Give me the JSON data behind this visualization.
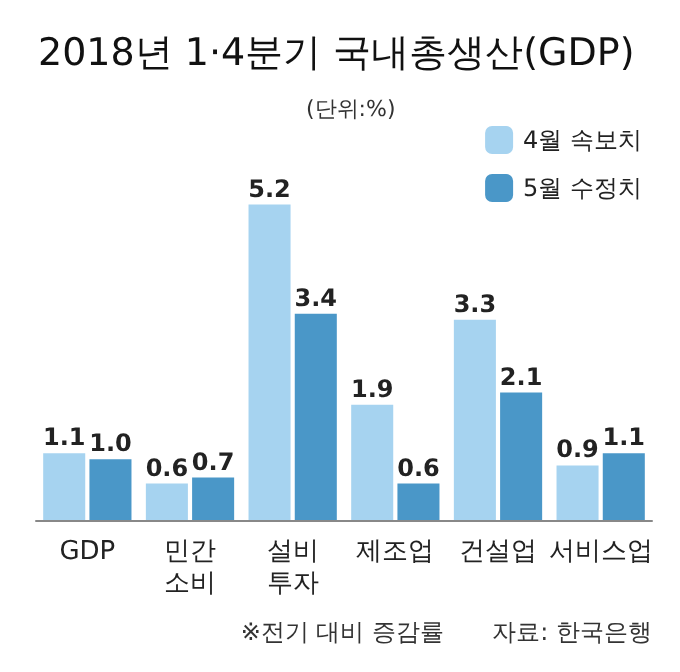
{
  "chart_data": {
    "type": "bar",
    "title": "2018년 1·4분기 국내총생산(GDP)",
    "subtitle": "(단위:%)",
    "categories": [
      "GDP",
      "민간\n소비",
      "설비\n투자",
      "제조업",
      "건설업",
      "서비스업"
    ],
    "series": [
      {
        "name": "4월 속보치",
        "color": "#a6d3f0",
        "values": [
          1.1,
          0.6,
          5.2,
          1.9,
          3.3,
          0.9
        ],
        "value_labels": [
          "1.1",
          "0.6",
          "5.2",
          "1.9",
          "3.3",
          "0.9"
        ]
      },
      {
        "name": "5월 수정치",
        "color": "#4a97c8",
        "values": [
          1.0,
          0.7,
          3.4,
          0.6,
          2.1,
          1.1
        ],
        "value_labels": [
          "1.0",
          "0.7",
          "3.4",
          "0.6",
          "2.1",
          "1.1"
        ]
      }
    ],
    "legend": "top right",
    "annotations": [
      "※전기 대비 증감률",
      "자료: 한국은행"
    ]
  }
}
